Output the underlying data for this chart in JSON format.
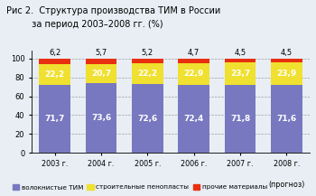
{
  "title_line1": "Рис 2.  Структура производства ТИМ в России",
  "title_line2": "         за период 2003–2008 гг. (%)",
  "categories": [
    "2003 г.",
    "2004 г.",
    "2005 г.",
    "2006 г.",
    "2007 г.",
    "2008 г."
  ],
  "cat_last_extra": "(прогноз)",
  "волокнистые": [
    71.7,
    73.6,
    72.6,
    72.4,
    71.8,
    71.6
  ],
  "пенопласты": [
    22.2,
    20.7,
    22.2,
    22.9,
    23.7,
    23.9
  ],
  "прочие": [
    6.2,
    5.7,
    5.2,
    4.7,
    4.5,
    4.5
  ],
  "color_vol": "#7878c0",
  "color_pen": "#f0e030",
  "color_proc": "#e83010",
  "legend_labels": [
    "волокнистые ТИМ",
    "строительные пенопласты",
    "прочие материалы"
  ],
  "bg_color": "#e8eef4",
  "plot_bg": "#f0f4f8",
  "ylabel_ticks": [
    0,
    20,
    40,
    60,
    80,
    100
  ],
  "ylim": [
    0,
    108
  ]
}
